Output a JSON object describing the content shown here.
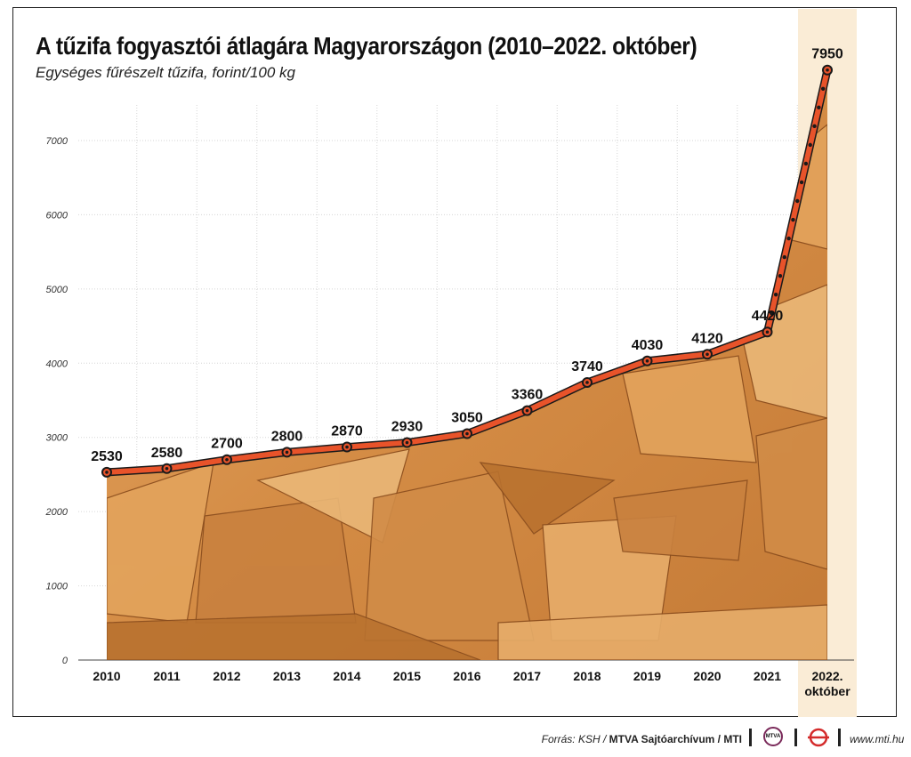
{
  "chart_data": {
    "type": "line",
    "title": "A tűzifa fogyasztói átlagára Magyarországon (2010–2022. október)",
    "subtitle": "Egységes fűrészelt tűzifa, forint/100 kg",
    "xlabel": "",
    "ylabel": "",
    "categories": [
      "2010",
      "2011",
      "2012",
      "2013",
      "2014",
      "2015",
      "2016",
      "2017",
      "2018",
      "2019",
      "2020",
      "2021",
      "2022. október"
    ],
    "values": [
      2530,
      2580,
      2700,
      2800,
      2870,
      2930,
      3050,
      3360,
      3740,
      4030,
      4120,
      4420,
      7950
    ],
    "data_labels": [
      "2530",
      "2580",
      "2700",
      "2800",
      "2870",
      "2930",
      "3050",
      "3360",
      "3740",
      "4030",
      "4120",
      "4420",
      "7950"
    ],
    "y_ticks": [
      "0",
      "1000",
      "2000",
      "3000",
      "4000",
      "5000",
      "6000",
      "7000"
    ],
    "ylim": [
      0,
      8000
    ],
    "grid": true,
    "highlight_category": "2022. október",
    "colors": {
      "line": "#e8532a",
      "outline": "#1a1a1a",
      "highlight": "#faecd6",
      "wood": "#d9964f"
    }
  },
  "footer": {
    "source_prefix": "Forrás: KSH / ",
    "source_bold": "MTVA Sajtóarchívum / MTI",
    "logo_mtva": "MTVA",
    "website": "www.mti.hu"
  }
}
